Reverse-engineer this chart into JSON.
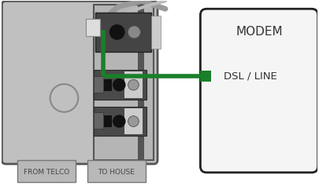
{
  "bg_color": "#ffffff",
  "panel_color": "#c0c0c0",
  "panel_border": "#555555",
  "modem_border": "#222222",
  "modem_label": "MODEM",
  "dsl_label": "DSL / LINE",
  "from_telco": "FROM TELCO",
  "to_house": "TO HOUSE",
  "green_color": "#1a7f2a",
  "dark_color": "#333333",
  "gray_cord": "#999999",
  "port_dark": "#444444",
  "port_medium": "#777777",
  "port_light": "#aaaaaa",
  "white_conn": "#e8e8e8",
  "screw_color": "#aaaaaa"
}
